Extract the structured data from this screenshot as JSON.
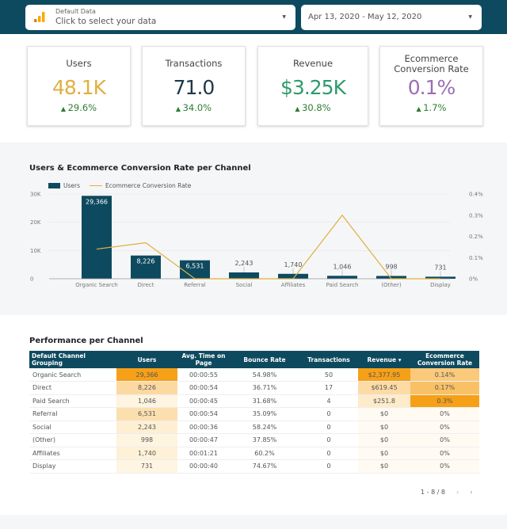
{
  "header": {
    "data_source_label": "Default Data",
    "data_source_value": "Click to select your data",
    "data_source_icon": "bar-chart-icon",
    "date_range": "Apr 13, 2020 - May 12, 2020"
  },
  "scorecards": [
    {
      "title": "Users",
      "value": "48.1K",
      "delta": "29.6%",
      "color": "#e0b040"
    },
    {
      "title": "Transactions",
      "value": "71.0",
      "delta": "34.0%",
      "color": "#1d3a48"
    },
    {
      "title": "Revenue",
      "value": "$3.25K",
      "delta": "30.8%",
      "color": "#2f9a6c"
    },
    {
      "title": "Ecommerce Conversion Rate",
      "value": "0.1%",
      "delta": "1.7%",
      "color": "#9a6fb5"
    }
  ],
  "chart": {
    "title": "Users & Ecommerce Conversion Rate per Channel"
  },
  "chart_data": {
    "type": "bar",
    "title": "Users & Ecommerce Conversion Rate per Channel",
    "categories": [
      "Organic Search",
      "Direct",
      "Referral",
      "Social",
      "Affiliates",
      "Paid Search",
      "(Other)",
      "Display"
    ],
    "series": [
      {
        "name": "Users",
        "type": "bar",
        "axis": "left",
        "color": "#0e4a5f",
        "values": [
          29366,
          8226,
          6531,
          2243,
          1740,
          1046,
          998,
          731
        ],
        "labels": [
          "29,366",
          "8,226",
          "6,531",
          "2,243",
          "1,740",
          "1,046",
          "998",
          "731"
        ]
      },
      {
        "name": "Ecommerce Conversion Rate",
        "type": "line",
        "axis": "right",
        "color": "#e0b040",
        "values": [
          0.14,
          0.17,
          0,
          0,
          0,
          0.3,
          0,
          0
        ]
      }
    ],
    "y_left": {
      "ylim": [
        0,
        30000
      ],
      "ticks": [
        "0",
        "10K",
        "20K",
        "30K"
      ]
    },
    "y_right": {
      "ylim": [
        0,
        0.4
      ],
      "ticks": [
        "0%",
        "0.1%",
        "0.2%",
        "0.3%",
        "0.4%"
      ]
    },
    "legend": "top-left",
    "grid": true
  },
  "table": {
    "title": "Performance per Channel",
    "columns": [
      "Default Channel Grouping",
      "Users",
      "Avg. Time on Page",
      "Bounce Rate",
      "Transactions",
      "Revenue ▾",
      "Ecommerce Conversion Rate"
    ],
    "rows": [
      [
        "Organic Search",
        "29,366",
        "00:00:55",
        "54.98%",
        "50",
        "$2,377.95",
        "0.14%"
      ],
      [
        "Direct",
        "8,226",
        "00:00:54",
        "36.71%",
        "17",
        "$619.45",
        "0.17%"
      ],
      [
        "Paid Search",
        "1,046",
        "00:00:45",
        "31.68%",
        "4",
        "$251.8",
        "0.3%"
      ],
      [
        "Referral",
        "6,531",
        "00:00:54",
        "35.09%",
        "0",
        "$0",
        "0%"
      ],
      [
        "Social",
        "2,243",
        "00:00:36",
        "58.24%",
        "0",
        "$0",
        "0%"
      ],
      [
        "(Other)",
        "998",
        "00:00:47",
        "37.85%",
        "0",
        "$0",
        "0%"
      ],
      [
        "Affiliates",
        "1,740",
        "00:01:21",
        "60.2%",
        "0",
        "$0",
        "0%"
      ],
      [
        "Display",
        "731",
        "00:00:40",
        "74.67%",
        "0",
        "$0",
        "0%"
      ]
    ],
    "heat_color": "#f59e0b",
    "pagination": "1 - 8 / 8"
  }
}
